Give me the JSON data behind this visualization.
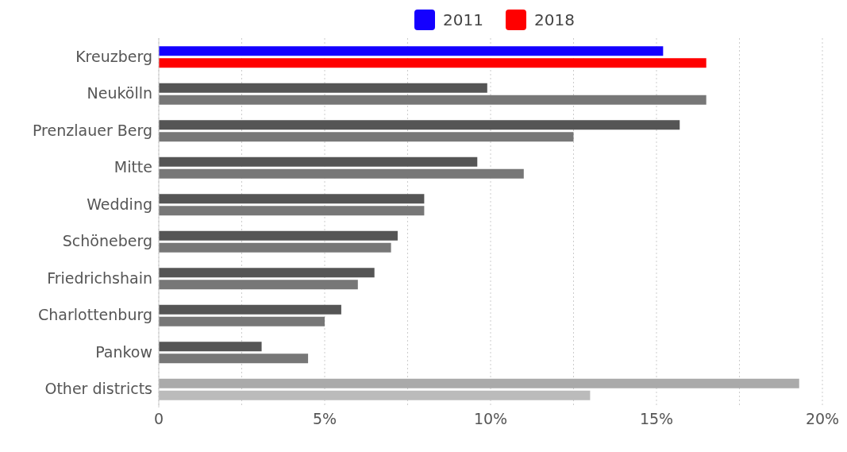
{
  "chart_data": {
    "type": "bar",
    "orientation": "horizontal",
    "categories": [
      "Kreuzberg",
      "Neukölln",
      "Prenzlauer Berg",
      "Mitte",
      "Wedding",
      "Schöneberg",
      "Friedrichshain",
      "Charlottenburg",
      "Pankow",
      "Other districts"
    ],
    "series": [
      {
        "name": "2011",
        "color": "#1400ff",
        "colors": [
          "#1400ff",
          "#555555",
          "#555555",
          "#555555",
          "#555555",
          "#555555",
          "#555555",
          "#555555",
          "#555555",
          "#aaaaaa"
        ],
        "values": [
          15.2,
          9.9,
          15.7,
          9.6,
          8.0,
          7.2,
          6.5,
          5.5,
          3.1,
          19.3
        ]
      },
      {
        "name": "2018",
        "color": "#ff0000",
        "colors": [
          "#ff0000",
          "#777777",
          "#777777",
          "#777777",
          "#777777",
          "#777777",
          "#777777",
          "#777777",
          "#777777",
          "#bbbbbb"
        ],
        "values": [
          16.5,
          16.5,
          12.5,
          11.0,
          8.0,
          7.0,
          6.0,
          5.0,
          4.5,
          13.0
        ]
      }
    ],
    "xlim": [
      0,
      20
    ],
    "xticks": [
      0,
      {
        "value": 2.5,
        "label": null
      },
      {
        "value": 5,
        "label": "5%"
      },
      {
        "value": 7.5,
        "label": null
      },
      {
        "value": 10,
        "label": "10%"
      },
      {
        "value": 12.5,
        "label": null
      },
      {
        "value": 15,
        "label": "15%"
      },
      {
        "value": 17.5,
        "label": null
      },
      {
        "value": 20,
        "label": "20%"
      }
    ],
    "grid": "x",
    "legend": "top"
  }
}
